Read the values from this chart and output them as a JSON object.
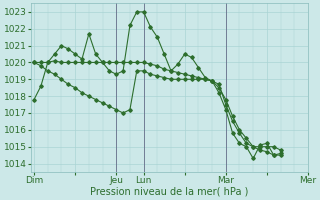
{
  "title": "",
  "xlabel": "Pression niveau de la mer( hPa )",
  "ylim": [
    1013.5,
    1023.5
  ],
  "yticks": [
    1014,
    1015,
    1016,
    1017,
    1018,
    1019,
    1020,
    1021,
    1022,
    1023
  ],
  "bg_color": "#cce8e8",
  "grid_color": "#aad4d4",
  "line_color": "#2d6e2d",
  "vline_color": "#555577",
  "day_labels": [
    "Dim",
    "",
    "Jeu",
    "Lun",
    "",
    "Mar",
    "",
    "Mer"
  ],
  "day_positions": [
    0,
    6,
    12,
    16,
    22,
    28,
    34,
    40
  ],
  "vline_positions": [
    12,
    16,
    28,
    40
  ],
  "series1": [
    1017.8,
    1018.6,
    1020.0,
    1020.5,
    1021.0,
    1020.8,
    1020.5,
    1020.2,
    1021.7,
    1020.5,
    1020.0,
    1019.5,
    1019.3,
    1019.5,
    1022.2,
    1023.0,
    1023.0,
    1022.1,
    1021.5,
    1020.5,
    1019.5,
    1019.9,
    1020.5,
    1020.3,
    1019.7,
    1019.1,
    1018.9,
    1018.2,
    1017.2,
    1015.8,
    1015.2,
    1015.0,
    1014.3,
    1015.1,
    1015.2,
    1014.5,
    1014.6
  ],
  "series2": [
    1020.0,
    1020.0,
    1020.0,
    1020.1,
    1020.0,
    1020.0,
    1020.0,
    1020.0,
    1020.0,
    1020.0,
    1020.0,
    1020.0,
    1020.0,
    1020.0,
    1020.0,
    1020.0,
    1020.0,
    1019.9,
    1019.8,
    1019.6,
    1019.5,
    1019.4,
    1019.3,
    1019.2,
    1019.1,
    1019.0,
    1018.9,
    1018.5,
    1017.8,
    1016.8,
    1016.0,
    1015.5,
    1015.0,
    1014.8,
    1014.7,
    1014.5,
    1014.5
  ],
  "series3": [
    1020.0,
    1019.8,
    1019.5,
    1019.3,
    1019.0,
    1018.7,
    1018.5,
    1018.2,
    1018.0,
    1017.8,
    1017.6,
    1017.4,
    1017.2,
    1017.0,
    1017.2,
    1019.5,
    1019.5,
    1019.3,
    1019.2,
    1019.1,
    1019.0,
    1019.0,
    1019.0,
    1019.0,
    1019.0,
    1019.0,
    1018.9,
    1018.7,
    1017.5,
    1016.5,
    1015.8,
    1015.2,
    1015.0,
    1015.0,
    1015.0,
    1015.0,
    1014.8
  ],
  "n_points": 37,
  "figsize": [
    3.2,
    2.0
  ],
  "dpi": 100
}
